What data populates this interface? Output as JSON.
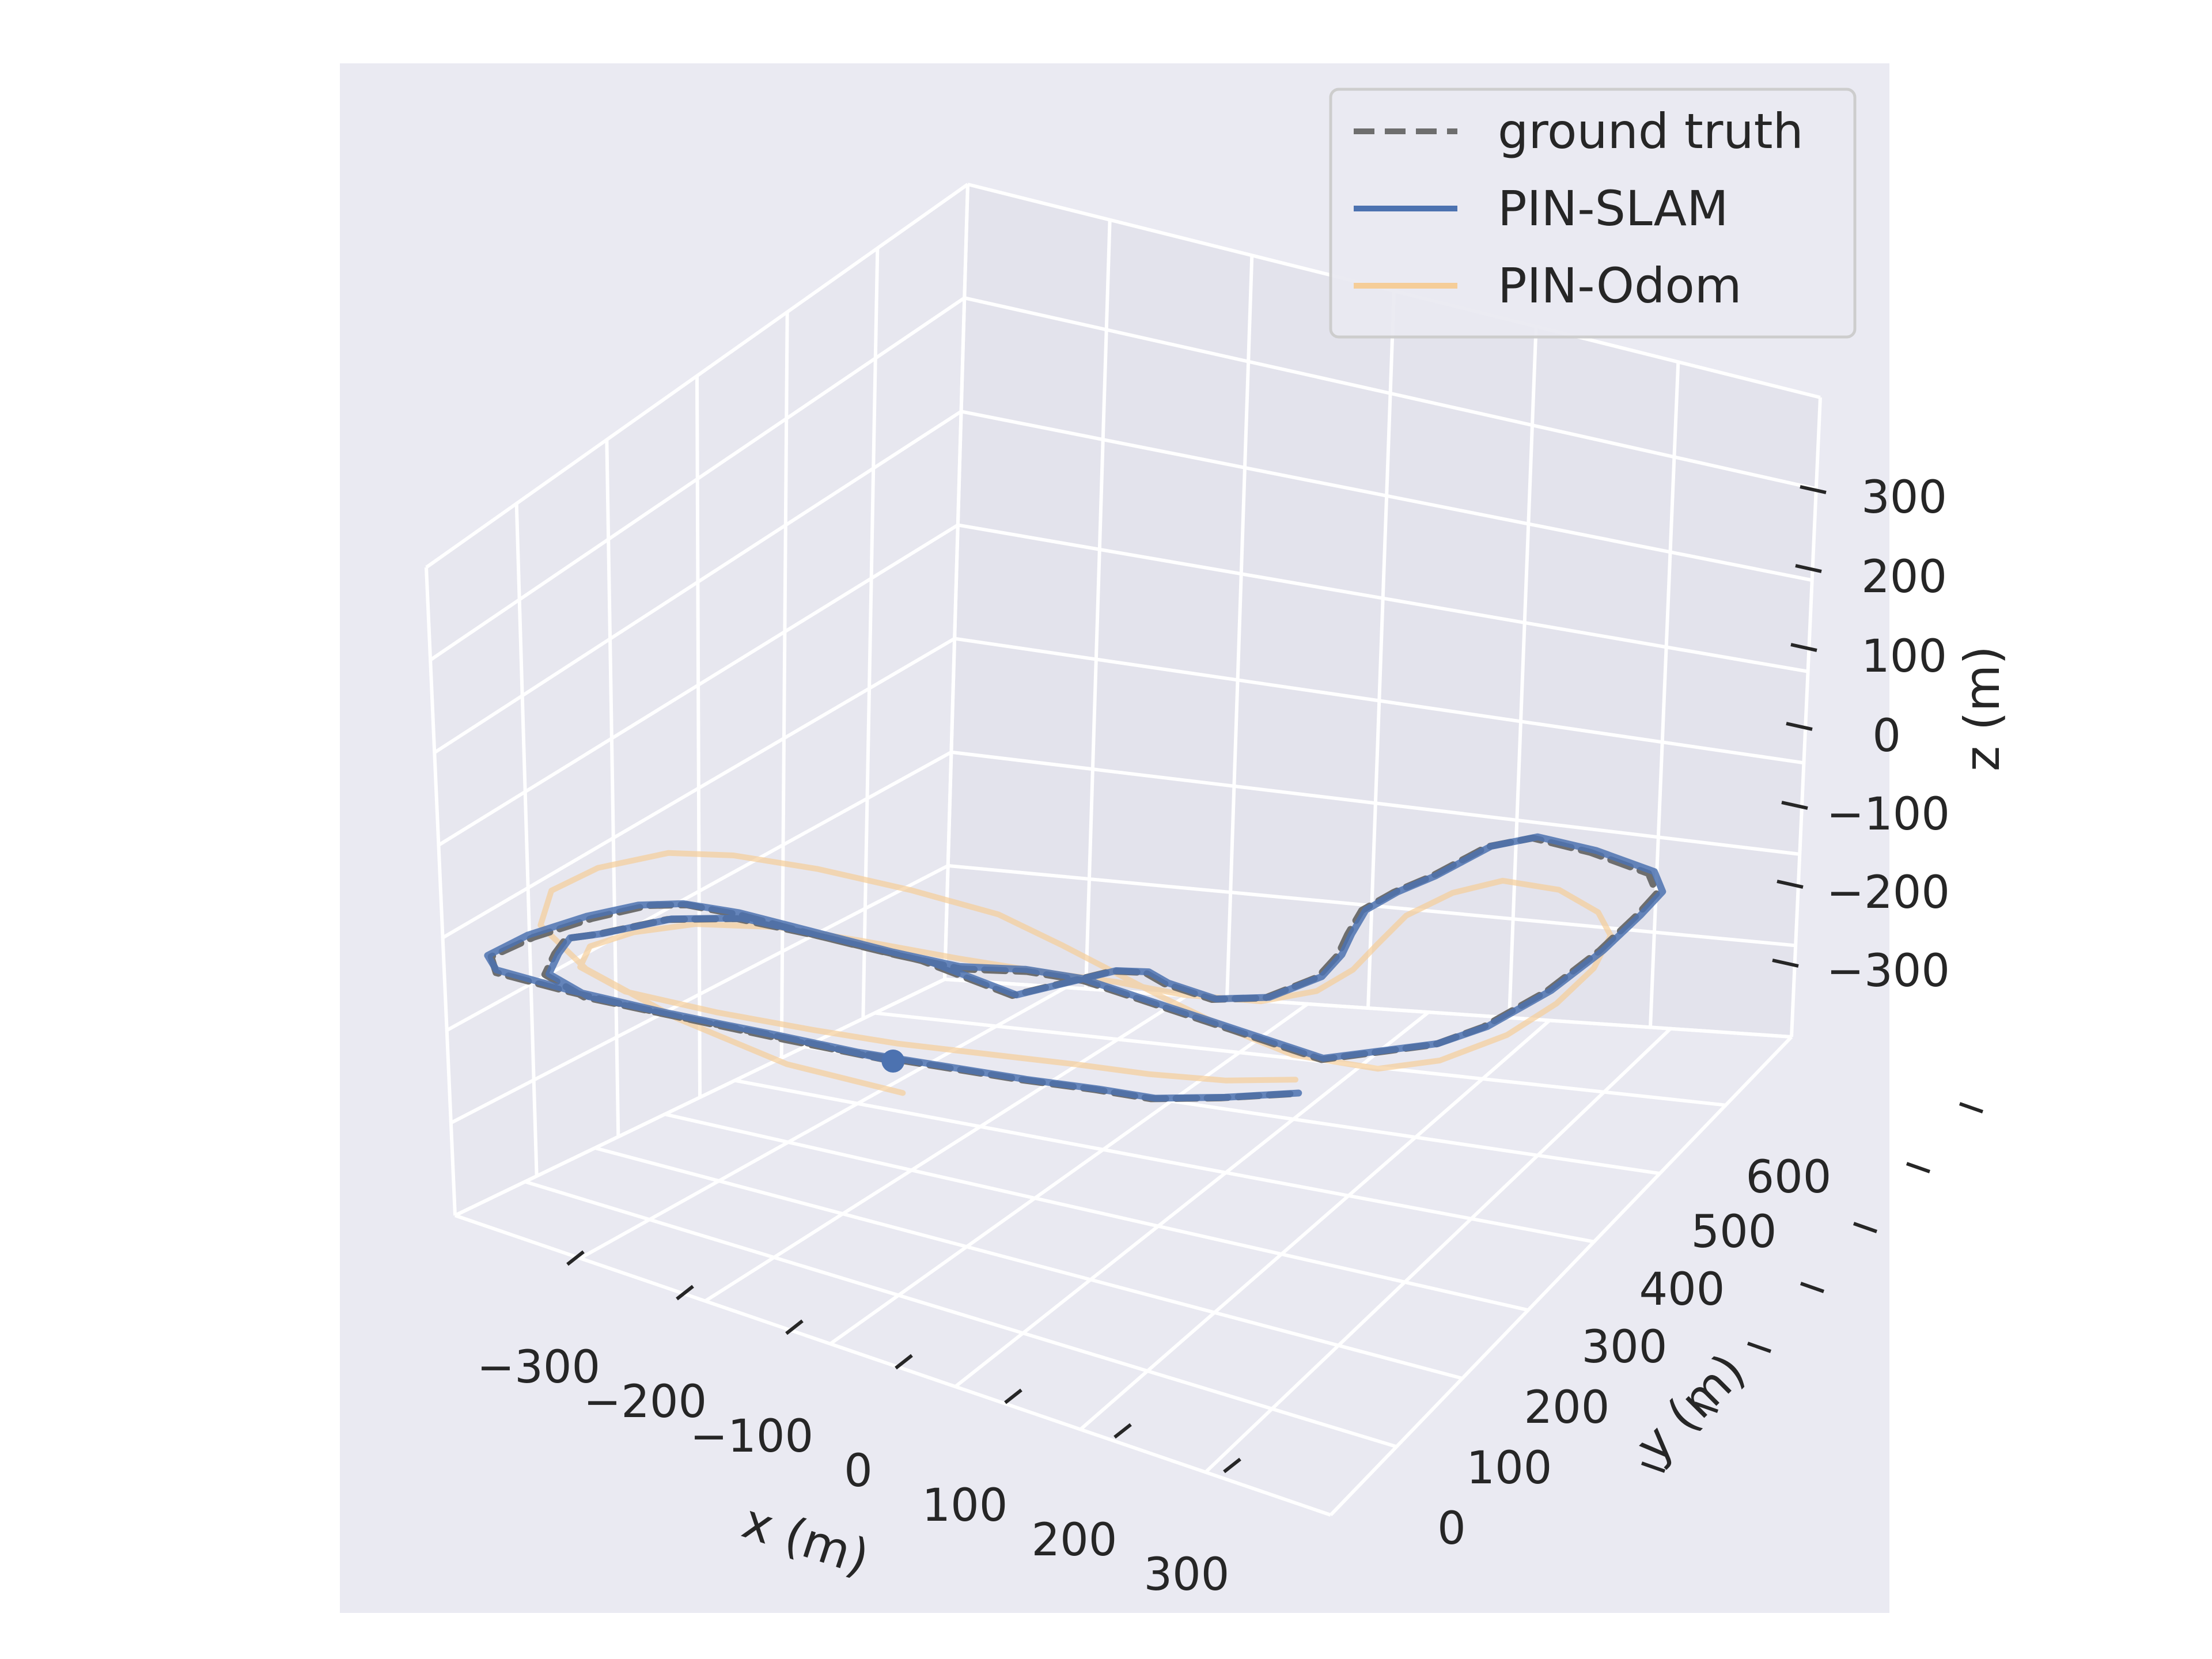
{
  "chart_data": {
    "type": "line",
    "projection": "3d",
    "xlabel": "x (m)",
    "ylabel": "y (m)",
    "zlabel": "z (m)",
    "x_ticks": [
      "−300",
      "−200",
      "−100",
      "0",
      "100",
      "200",
      "300"
    ],
    "y_ticks": [
      "0",
      "100",
      "200",
      "300",
      "400",
      "500",
      "600"
    ],
    "z_ticks": [
      "300",
      "200",
      "100",
      "0",
      "−100",
      "−200",
      "−300"
    ],
    "xlim": [
      -350,
      350
    ],
    "ylim": [
      -50,
      700
    ],
    "zlim": [
      -350,
      350
    ],
    "grid": true,
    "legend_position": "top-right",
    "colors": {
      "axes_background": "#eaeaf2",
      "pane": "#e6e6ef",
      "grid": "#ffffff",
      "ground_truth": "#6e6e6e",
      "pin_slam": "#4c72b0",
      "pin_odom": "#f5cd98"
    },
    "series": [
      {
        "name": "ground truth",
        "style": "dashed",
        "color": "#6e6e6e",
        "points": [
          [
            0,
            0
          ],
          [
            -80,
            -15
          ],
          [
            -170,
            -30
          ],
          [
            -245,
            -40
          ],
          [
            -300,
            -45
          ],
          [
            -315,
            -30
          ],
          [
            -305,
            5
          ],
          [
            -285,
            45
          ],
          [
            -262,
            78
          ],
          [
            -240,
            92
          ],
          [
            -200,
            100
          ],
          [
            -140,
            105
          ],
          [
            -80,
            112
          ],
          [
            -30,
            120
          ],
          [
            10,
            140
          ],
          [
            50,
            150
          ],
          [
            100,
            150
          ],
          [
            150,
            150
          ],
          [
            200,
            150
          ],
          [
            250,
            150
          ],
          [
            305,
            205
          ],
          [
            320,
            240
          ],
          [
            330,
            300
          ],
          [
            330,
            360
          ],
          [
            325,
            410
          ],
          [
            320,
            440
          ],
          [
            300,
            458
          ],
          [
            250,
            460
          ],
          [
            205,
            455
          ],
          [
            185,
            430
          ],
          [
            175,
            380
          ],
          [
            165,
            350
          ],
          [
            160,
            320
          ],
          [
            170,
            290
          ],
          [
            180,
            265
          ],
          [
            185,
            235
          ],
          [
            170,
            195
          ],
          [
            140,
            175
          ],
          [
            100,
            175
          ],
          [
            80,
            180
          ],
          [
            60,
            170
          ],
          [
            20,
            110
          ],
          [
            -60,
            115
          ],
          [
            -140,
            105
          ],
          [
            -200,
            95
          ],
          [
            -240,
            70
          ],
          [
            -270,
            30
          ],
          [
            -280,
            20
          ],
          [
            -285,
            15
          ],
          [
            -280,
            -5
          ],
          [
            -270,
            -30
          ],
          [
            -230,
            -40
          ],
          [
            -170,
            -30
          ],
          [
            -90,
            -15
          ],
          [
            -30,
            -5
          ],
          [
            30,
            10
          ],
          [
            90,
            25
          ],
          [
            140,
            40
          ],
          [
            180,
            50
          ],
          [
            220,
            75
          ],
          [
            260,
            105
          ]
        ],
        "z": 0
      },
      {
        "name": "PIN-SLAM",
        "style": "solid",
        "color": "#4c72b0",
        "points": [
          [
            0,
            0
          ],
          [
            -80,
            -12
          ],
          [
            -170,
            -28
          ],
          [
            -245,
            -38
          ],
          [
            -302,
            -42
          ],
          [
            -318,
            -30
          ],
          [
            -310,
            5
          ],
          [
            -290,
            45
          ],
          [
            -268,
            75
          ],
          [
            -243,
            92
          ],
          [
            -203,
            102
          ],
          [
            -143,
            108
          ],
          [
            -83,
            114
          ],
          [
            -33,
            122
          ],
          [
            8,
            142
          ],
          [
            48,
            152
          ],
          [
            100,
            152
          ],
          [
            150,
            152
          ],
          [
            200,
            152
          ],
          [
            250,
            152
          ],
          [
            306,
            207
          ],
          [
            322,
            242
          ],
          [
            332,
            302
          ],
          [
            332,
            362
          ],
          [
            327,
            412
          ],
          [
            322,
            444
          ],
          [
            302,
            462
          ],
          [
            252,
            464
          ],
          [
            207,
            458
          ],
          [
            187,
            432
          ],
          [
            177,
            382
          ],
          [
            167,
            352
          ],
          [
            162,
            322
          ],
          [
            172,
            292
          ],
          [
            182,
            267
          ],
          [
            187,
            237
          ],
          [
            172,
            197
          ],
          [
            142,
            177
          ],
          [
            102,
            177
          ],
          [
            82,
            182
          ],
          [
            62,
            172
          ],
          [
            22,
            112
          ],
          [
            -58,
            117
          ],
          [
            -138,
            107
          ],
          [
            -198,
            97
          ],
          [
            -238,
            72
          ],
          [
            -268,
            32
          ],
          [
            -278,
            22
          ],
          [
            -283,
            17
          ],
          [
            -278,
            -3
          ],
          [
            -268,
            -28
          ],
          [
            -228,
            -38
          ],
          [
            -168,
            -28
          ],
          [
            -88,
            -13
          ],
          [
            -28,
            -3
          ],
          [
            32,
            12
          ],
          [
            92,
            27
          ],
          [
            142,
            42
          ],
          [
            182,
            52
          ],
          [
            222,
            77
          ],
          [
            262,
            107
          ]
        ],
        "z": 0
      },
      {
        "name": "PIN-Odom",
        "style": "solid",
        "color": "#f5cd98",
        "points": [
          [
            30,
            -30
          ],
          [
            -60,
            -40
          ],
          [
            -160,
            -30
          ],
          [
            -250,
            -10
          ],
          [
            -310,
            20
          ],
          [
            -330,
            60
          ],
          [
            -320,
            100
          ],
          [
            -290,
            140
          ],
          [
            -250,
            160
          ],
          [
            -190,
            175
          ],
          [
            -120,
            185
          ],
          [
            -50,
            190
          ],
          [
            10,
            180
          ],
          [
            60,
            170
          ],
          [
            110,
            160
          ],
          [
            170,
            150
          ],
          [
            230,
            145
          ],
          [
            290,
            160
          ],
          [
            320,
            190
          ],
          [
            340,
            240
          ],
          [
            345,
            290
          ],
          [
            340,
            340
          ],
          [
            325,
            380
          ],
          [
            300,
            400
          ],
          [
            260,
            410
          ],
          [
            220,
            400
          ],
          [
            200,
            370
          ],
          [
            190,
            330
          ],
          [
            195,
            290
          ],
          [
            200,
            255
          ],
          [
            195,
            220
          ],
          [
            170,
            190
          ],
          [
            120,
            170
          ],
          [
            70,
            160
          ],
          [
            20,
            145
          ],
          [
            -40,
            130
          ],
          [
            -110,
            115
          ],
          [
            -170,
            100
          ],
          [
            -220,
            75
          ],
          [
            -250,
            45
          ],
          [
            -265,
            15
          ],
          [
            -255,
            -10
          ],
          [
            -210,
            -20
          ],
          [
            -140,
            -10
          ],
          [
            -70,
            5
          ],
          [
            -10,
            20
          ],
          [
            50,
            40
          ],
          [
            110,
            60
          ],
          [
            160,
            75
          ],
          [
            210,
            95
          ],
          [
            250,
            120
          ]
        ],
        "z": 0
      }
    ]
  },
  "legend": {
    "items": [
      {
        "label": "ground truth"
      },
      {
        "label": "PIN-SLAM"
      },
      {
        "label": "PIN-Odom"
      }
    ]
  }
}
